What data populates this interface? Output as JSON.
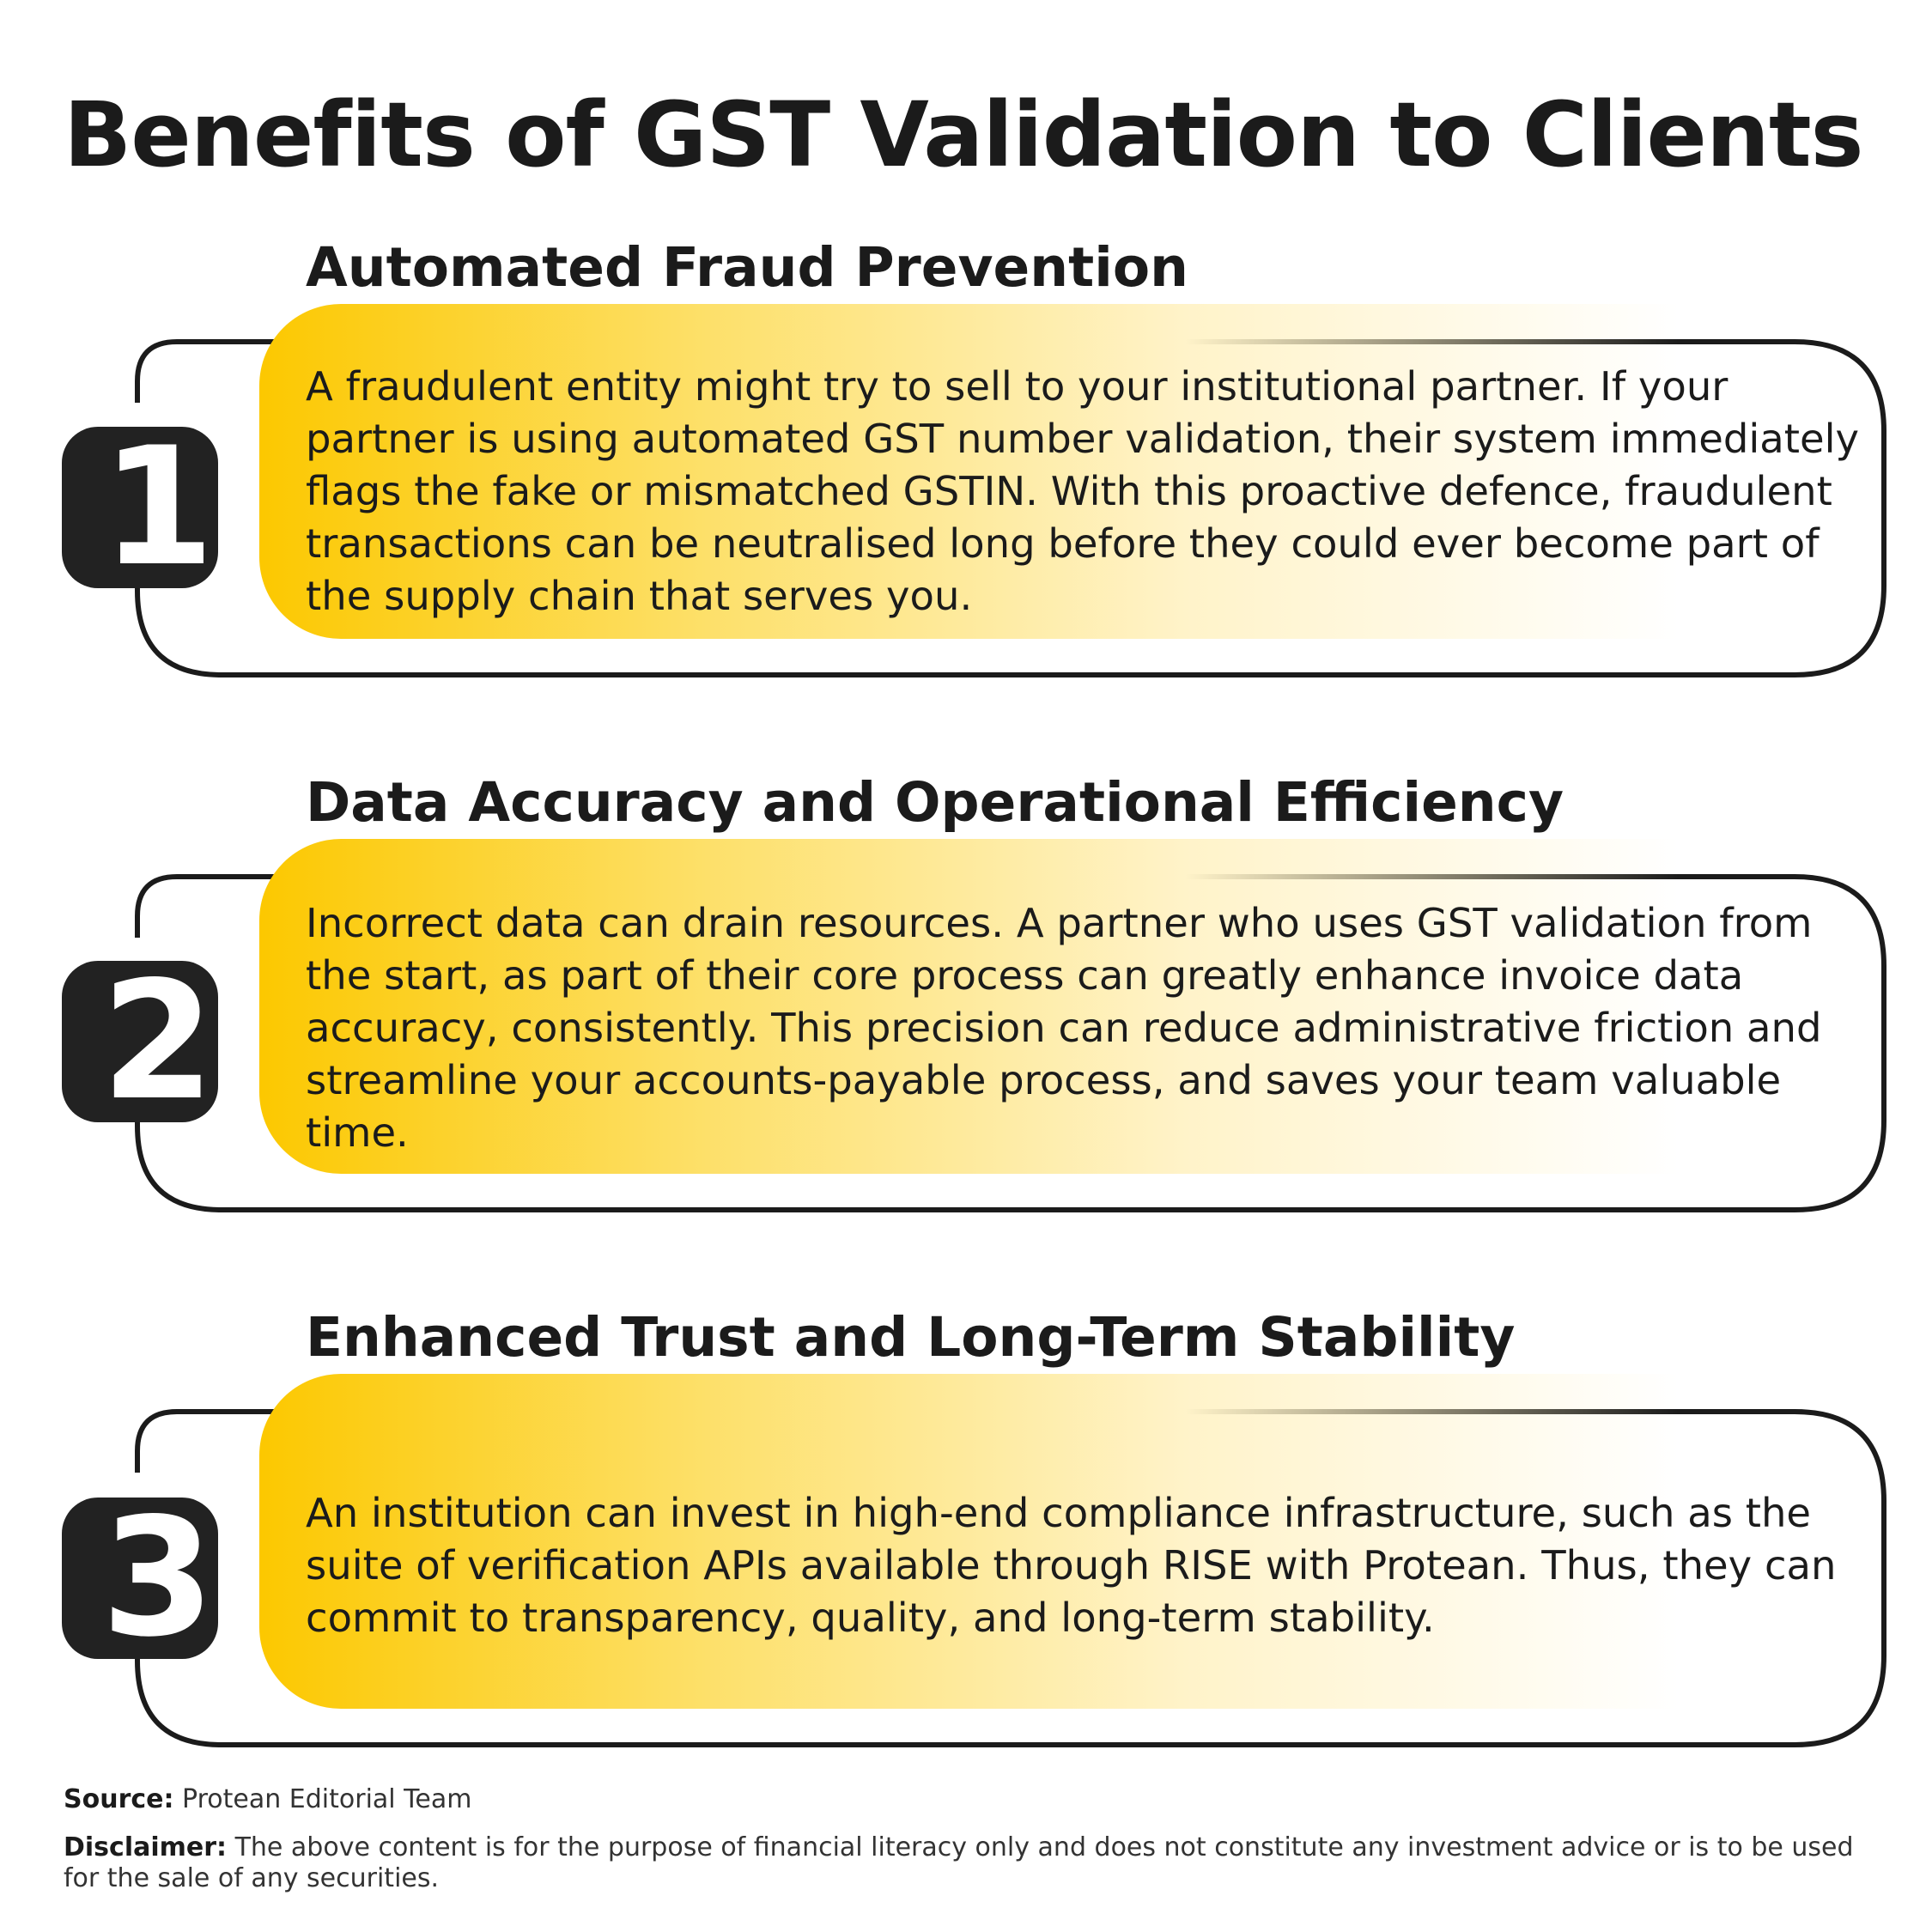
{
  "title": "Benefits of GST Validation to Clients",
  "colors": {
    "accent": "#fcc800",
    "dark": "#1b1b1b",
    "badge": "#222222",
    "background": "#ffffff"
  },
  "benefits": [
    {
      "number": "1",
      "heading": "Automated Fraud Prevention",
      "body": "A fraudulent entity might try to sell to your institutional partner. If your partner is using automated GST number validation, their system immediately flags the fake or mismatched GSTIN. With this proactive defence, fraudulent transactions can be neutralised long before they could ever become part of the supply chain that serves you."
    },
    {
      "number": "2",
      "heading": "Data Accuracy and Operational Efficiency",
      "body": "Incorrect data can drain resources. A partner who uses GST validation from the start, as part of their core process can greatly enhance invoice data accuracy, consistently. This precision can reduce administrative friction and streamline your accounts-payable process, and saves your team valuable time."
    },
    {
      "number": "3",
      "heading": "Enhanced Trust and Long-Term Stability",
      "body": "An institution can invest in high-end compliance infrastructure, such as the suite of verification APIs available through RISE with Protean. Thus, they can commit to transparency, quality, and long-term stability."
    }
  ],
  "footer": {
    "source_label": "Source:",
    "source_text": "Protean Editorial Team",
    "disclaimer_label": "Disclaimer:",
    "disclaimer_text": "The above content is for the purpose of financial literacy only and does not constitute any investment advice or is to be used for the sale of any securities."
  }
}
